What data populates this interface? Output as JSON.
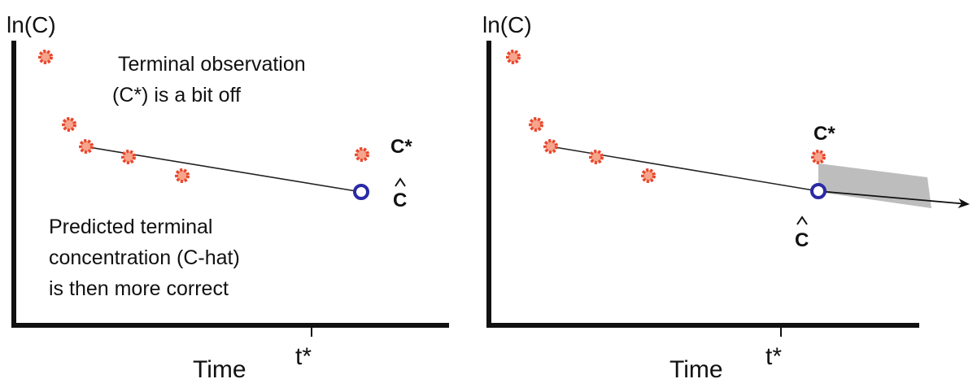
{
  "left_panel": {
    "y_label": "ln(C)",
    "x_label": "Time",
    "tick_label": "t*",
    "annotation_top": [
      "Terminal observation",
      "(C*) is a bit off"
    ],
    "annotation_bottom": [
      "Predicted terminal",
      "concentration (C-hat)",
      "is then more correct"
    ],
    "label_observed": "C*",
    "label_predicted": "C"
  },
  "right_panel": {
    "y_label": "ln(C)",
    "x_label": "Time",
    "tick_label": "t*",
    "label_observed": "C*",
    "label_predicted": "C"
  },
  "colors": {
    "observed": "#e8462c",
    "predicted": "#2a2aa6",
    "axis": "#111111",
    "line": "#222222",
    "shade": "#bdbdbd"
  }
}
